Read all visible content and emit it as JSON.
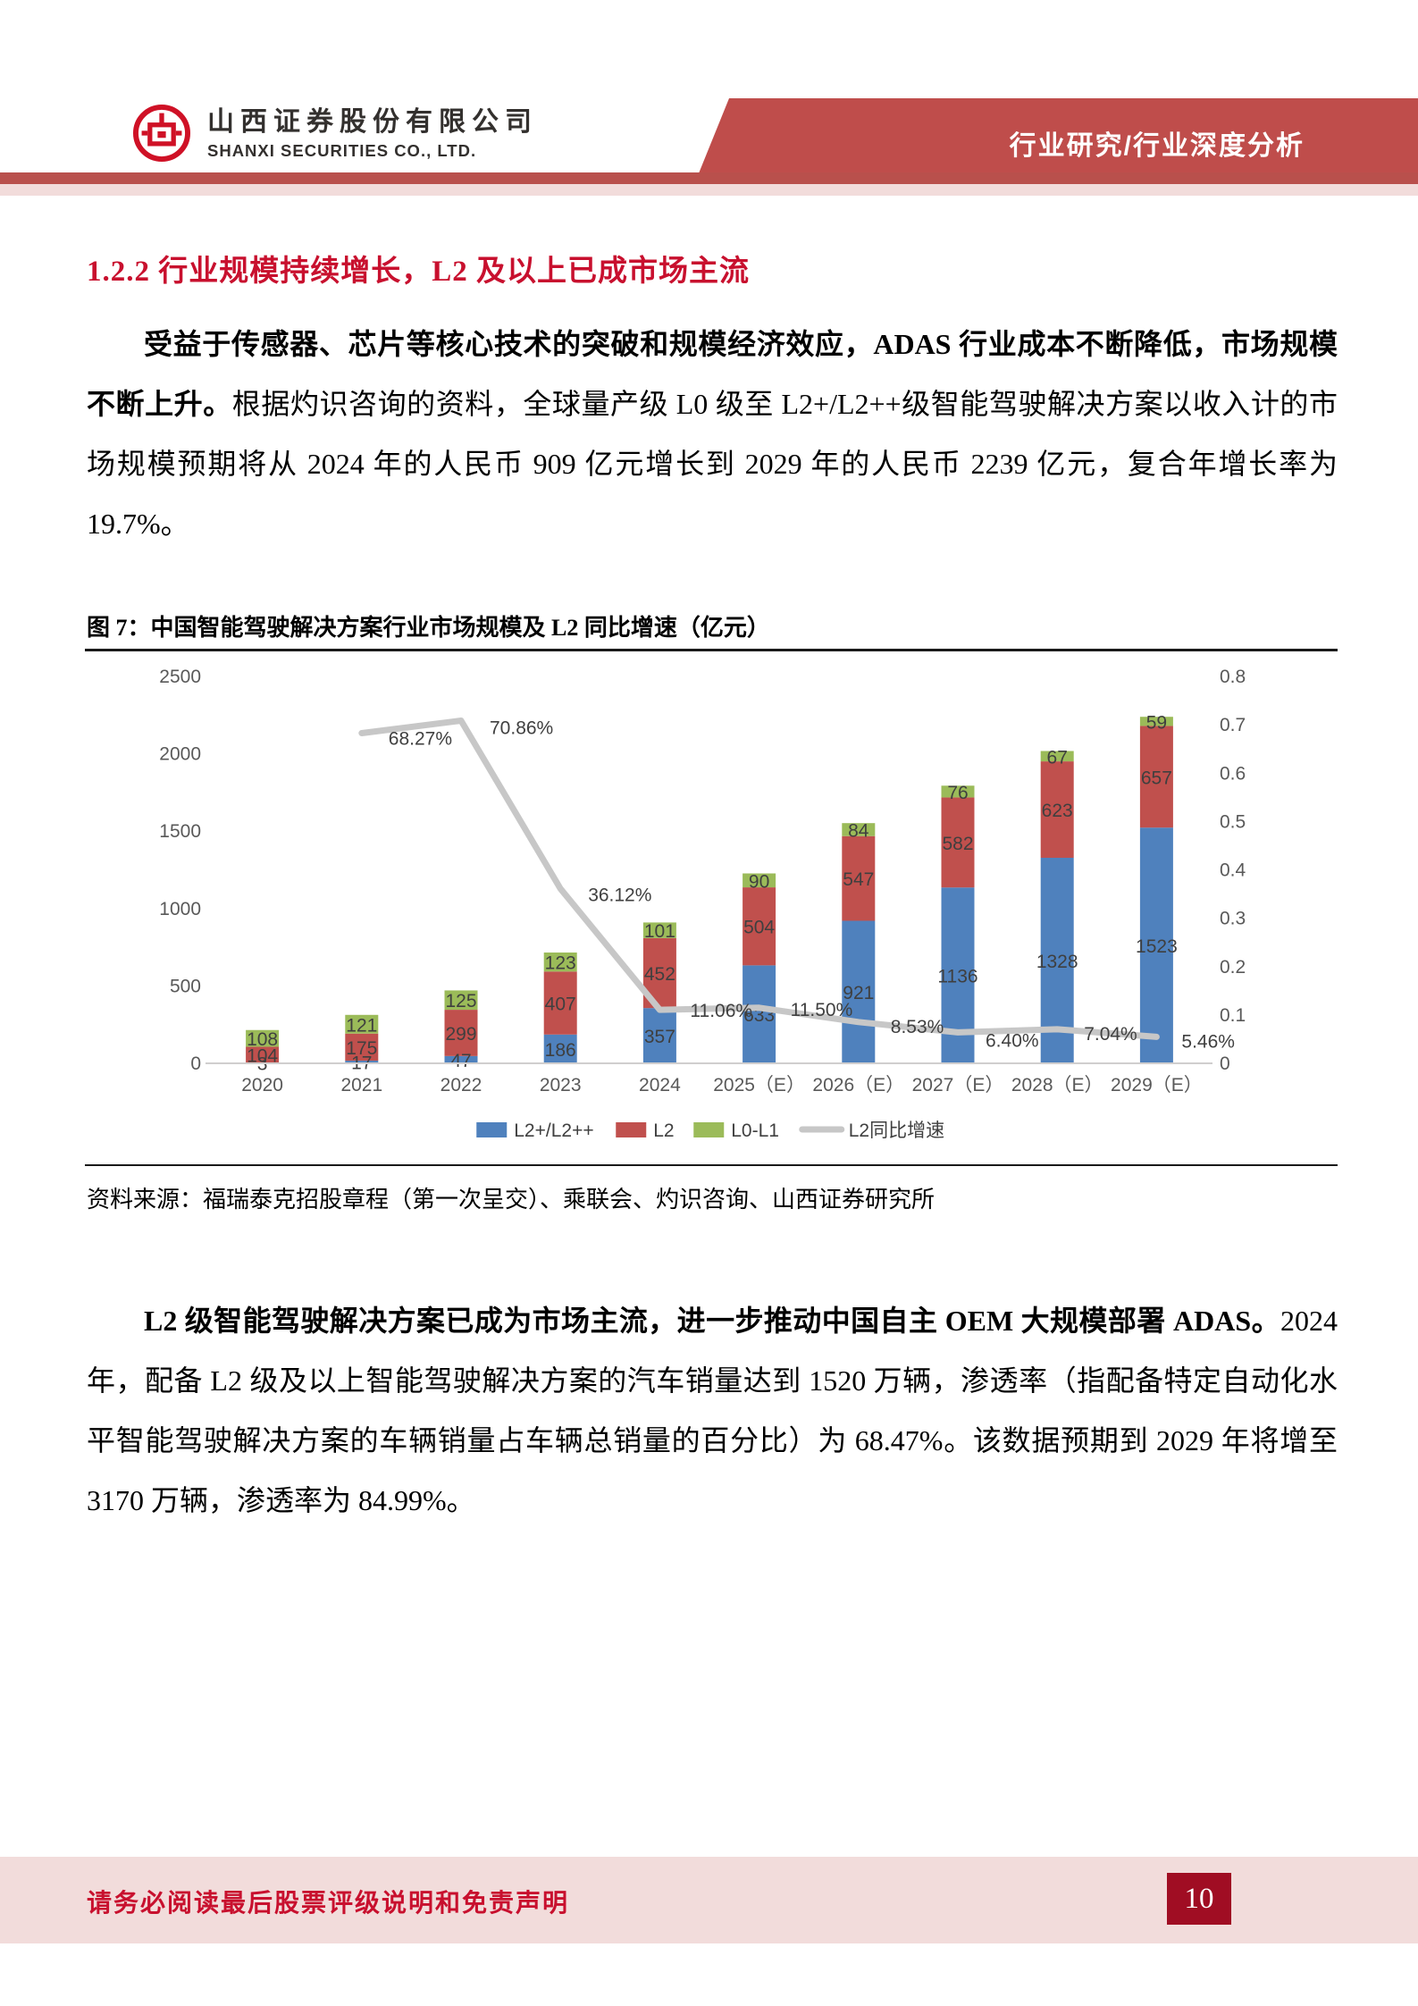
{
  "header": {
    "company_cn": "山西证券股份有限公司",
    "company_en": "SHANXI SECURITIES CO., LTD.",
    "banner": "行业研究/行业深度分析"
  },
  "section": {
    "heading": "1.2.2 行业规模持续增长，L2 及以上已成市场主流"
  },
  "para1": {
    "bold": "受益于传感器、芯片等核心技术的突破和规模经济效应，ADAS 行业成本不断降低，市场规模不断上升。",
    "rest": "根据灼识咨询的资料，全球量产级 L0 级至 L2+/L2++级智能驾驶解决方案以收入计的市场规模预期将从 2024 年的人民币 909 亿元增长到 2029 年的人民币 2239 亿元，复合年增长率为 19.7%。"
  },
  "figure": {
    "title": "图 7：中国智能驾驶解决方案行业市场规模及 L2 同比增速（亿元）",
    "source": "资料来源：福瑞泰克招股章程（第一次呈交）、乘联会、灼识咨询、山西证券研究所"
  },
  "chart_data": {
    "type": "bar",
    "stacked": true,
    "title": "中国智能驾驶解决方案行业市场规模及L2同比增速（亿元）",
    "categories": [
      "2020",
      "2021",
      "2022",
      "2023",
      "2024",
      "2025（E）",
      "2026（E）",
      "2027（E）",
      "2028（E）",
      "2029（E）"
    ],
    "series": [
      {
        "name": "L2+/L2++",
        "color": "#4F81BD",
        "values": [
          3,
          17,
          47,
          186,
          357,
          633,
          921,
          1136,
          1328,
          1523
        ]
      },
      {
        "name": "L2",
        "color": "#C0504D",
        "values": [
          104,
          175,
          299,
          407,
          452,
          504,
          547,
          582,
          623,
          657
        ]
      },
      {
        "name": "L0-L1",
        "color": "#9BBB59",
        "values": [
          108,
          121,
          125,
          123,
          101,
          90,
          84,
          76,
          67,
          59
        ]
      }
    ],
    "line": {
      "name": "L2同比增速",
      "color": "#C7C7C7",
      "values": [
        null,
        0.6827,
        0.7086,
        0.3612,
        0.1106,
        0.115,
        0.0853,
        0.064,
        0.0704,
        0.0546
      ],
      "labels": [
        null,
        "68.27%",
        "70.86%",
        "36.12%",
        "11.06%",
        "11.50%",
        "8.53%",
        "6.40%",
        "7.04%",
        "5.46%"
      ]
    },
    "left_axis": {
      "min": 0,
      "max": 2500,
      "ticks": [
        0,
        500,
        1000,
        1500,
        2000,
        2500
      ]
    },
    "right_axis": {
      "min": 0,
      "max": 0.8,
      "ticks": [
        "0",
        "0.1",
        "0.2",
        "0.3",
        "0.4",
        "0.5",
        "0.6",
        "0.7",
        "0.8"
      ]
    },
    "legend": [
      "L2+/L2++",
      "L2",
      "L0-L1",
      "L2同比增速"
    ],
    "legend_position": "bottom",
    "grid": false
  },
  "para2": {
    "bold": "L2 级智能驾驶解决方案已成为市场主流，进一步推动中国自主 OEM 大规模部署 ADAS。",
    "rest": "2024 年，配备 L2 级及以上智能驾驶解决方案的汽车销量达到 1520 万辆，渗透率（指配备特定自动化水平智能驾驶解决方案的车辆销量占车辆总销量的百分比）为 68.47%。该数据预期到 2029 年将增至 3170 万辆，渗透率为 84.99%。"
  },
  "footer": {
    "disclaimer": "请务必阅读最后股票评级说明和免责声明",
    "page_number": "10"
  }
}
